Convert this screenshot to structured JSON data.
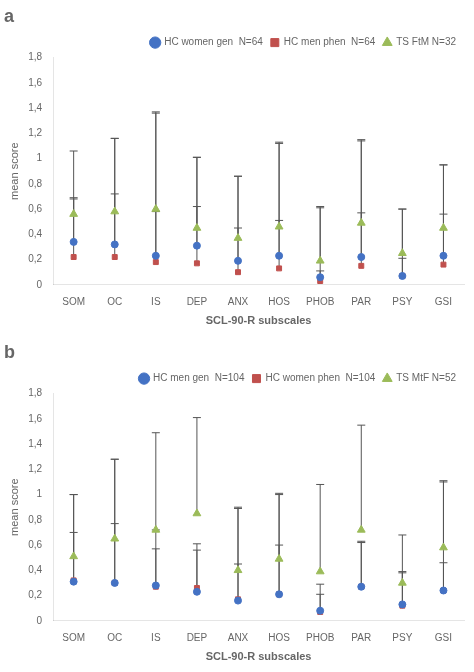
{
  "chart_data": [
    {
      "type": "scatter",
      "title": "a",
      "categories": [
        "SOM",
        "OC",
        "IS",
        "DEP",
        "ANX",
        "HOS",
        "PHOB",
        "PAR",
        "PSY",
        "GSI"
      ],
      "series": [
        {
          "name": "HC women gen  N=64",
          "color": "#4472C4",
          "marker": "o",
          "values": [
            0.34,
            0.32,
            0.23,
            0.31,
            0.19,
            0.23,
            0.06,
            0.22,
            0.07,
            0.23
          ],
          "errors": [
            0.72,
            0.84,
            1.14,
            0.7,
            0.67,
            0.89,
            0.56,
            0.93,
            0.53,
            0.72
          ]
        },
        {
          "name": "HC men phen  N=64",
          "color": "#C0504D",
          "marker": "s",
          "values": [
            0.22,
            0.22,
            0.18,
            0.17,
            0.1,
            0.13,
            0.03,
            0.15,
            0.07,
            0.16
          ],
          "errors": [
            0.47,
            0.5,
            0.4,
            0.45,
            0.35,
            0.38,
            0.08,
            0.42,
            0.14,
            0.4
          ]
        },
        {
          "name": "TS FtM N=32",
          "color": "#9BBB59",
          "marker": "^",
          "values": [
            0.56,
            0.58,
            0.6,
            0.45,
            0.37,
            0.46,
            0.19,
            0.49,
            0.25,
            0.45
          ],
          "errors": [
            0.12,
            0.58,
            0.76,
            0.56,
            0.49,
            0.67,
            0.42,
            0.65,
            0.35,
            0.5
          ]
        }
      ],
      "xlabel": "SCL-90-R subscales",
      "ylabel": "mean score",
      "ylim": [
        0,
        1.8
      ],
      "yticks": [
        0,
        {
          "value": 0.2,
          "label": "0,2"
        },
        {
          "value": 0.4,
          "label": "0,4"
        },
        {
          "value": 0.6,
          "label": "0,6"
        },
        {
          "value": 0.8,
          "label": "0,8"
        },
        1,
        {
          "value": 1.2,
          "label": "1,2"
        },
        {
          "value": 1.4,
          "label": "1,4"
        },
        {
          "value": 1.6,
          "label": "1,6"
        },
        {
          "value": 1.8,
          "label": "1,8"
        }
      ],
      "grid": false,
      "legend": "upper right"
    },
    {
      "type": "scatter",
      "title": "b",
      "categories": [
        "SOM",
        "OC",
        "IS",
        "DEP",
        "ANX",
        "HOS",
        "PHOB",
        "PAR",
        "PSY",
        "GSI"
      ],
      "series": [
        {
          "name": "HC men gen  N=104",
          "color": "#4472C4",
          "marker": "o",
          "values": [
            0.31,
            0.3,
            0.28,
            0.23,
            0.16,
            0.21,
            0.08,
            0.27,
            0.13,
            0.24
          ],
          "errors": [
            0.69,
            0.98,
            0.44,
            0.38,
            0.73,
            0.79,
            0.13,
            0.36,
            0.26,
            0.87
          ]
        },
        {
          "name": "HC women phen  N=104",
          "color": "#C0504D",
          "marker": "s",
          "values": [
            0.32,
            0.3,
            0.27,
            0.26,
            0.17,
            0.21,
            0.07,
            0.27,
            0.12,
            0.24
          ],
          "errors": [
            0.38,
            0.47,
            0.3,
            0.3,
            0.28,
            0.39,
            0.22,
            0.35,
            0.26,
            0.22
          ]
        },
        {
          "name": "TS MtF N=52",
          "color": "#9BBB59",
          "marker": "^",
          "values": [
            0.51,
            0.65,
            0.72,
            0.85,
            0.4,
            0.49,
            0.39,
            0.72,
            0.3,
            0.58
          ],
          "errors": [
            0.49,
            0.63,
            0.77,
            0.76,
            0.5,
            0.52,
            0.69,
            0.83,
            0.38,
            0.52
          ]
        }
      ],
      "xlabel": "SCL-90-R subscales",
      "ylabel": "mean score",
      "ylim": [
        0,
        1.8
      ],
      "yticks": [
        0,
        {
          "value": 0.2,
          "label": "0,2"
        },
        {
          "value": 0.4,
          "label": "0,4"
        },
        {
          "value": 0.6,
          "label": "0,6"
        },
        {
          "value": 0.8,
          "label": "0,8"
        },
        1,
        {
          "value": 1.2,
          "label": "1,2"
        },
        {
          "value": 1.4,
          "label": "1,4"
        },
        {
          "value": 1.6,
          "label": "1,6"
        },
        {
          "value": 1.8,
          "label": "1,8"
        }
      ],
      "grid": false,
      "legend": "upper right"
    }
  ]
}
